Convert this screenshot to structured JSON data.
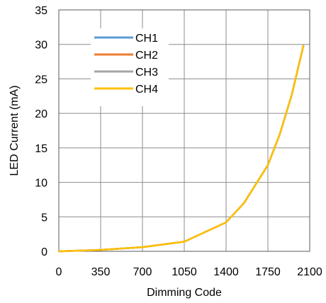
{
  "chart_data": {
    "type": "line",
    "title": "",
    "xlabel": "Dimming Code",
    "ylabel": "LED Current (mA)",
    "xlim": [
      0,
      2100
    ],
    "ylim": [
      0,
      35
    ],
    "x_ticks": [
      0,
      350,
      700,
      1050,
      1400,
      1750,
      2100
    ],
    "y_ticks": [
      0,
      5,
      10,
      15,
      20,
      25,
      30,
      35
    ],
    "grid": true,
    "legend_position": "top-left",
    "x": [
      0,
      350,
      700,
      1050,
      1400,
      1550,
      1750,
      1850,
      1950,
      2047
    ],
    "series": [
      {
        "name": "CH1",
        "color": "#5b9bd5",
        "values": [
          0,
          0.2,
          0.6,
          1.4,
          4.2,
          7.0,
          12.5,
          17.0,
          22.7,
          29.8
        ]
      },
      {
        "name": "CH2",
        "color": "#ed7d31",
        "values": [
          0,
          0.2,
          0.6,
          1.4,
          4.2,
          7.0,
          12.5,
          17.0,
          22.7,
          29.8
        ]
      },
      {
        "name": "CH3",
        "color": "#a5a5a5",
        "values": [
          0,
          0.2,
          0.6,
          1.4,
          4.2,
          7.0,
          12.5,
          17.0,
          22.7,
          29.8
        ]
      },
      {
        "name": "CH4",
        "color": "#ffc000",
        "values": [
          0,
          0.2,
          0.6,
          1.4,
          4.2,
          7.0,
          12.5,
          17.0,
          22.7,
          29.8
        ]
      }
    ]
  }
}
